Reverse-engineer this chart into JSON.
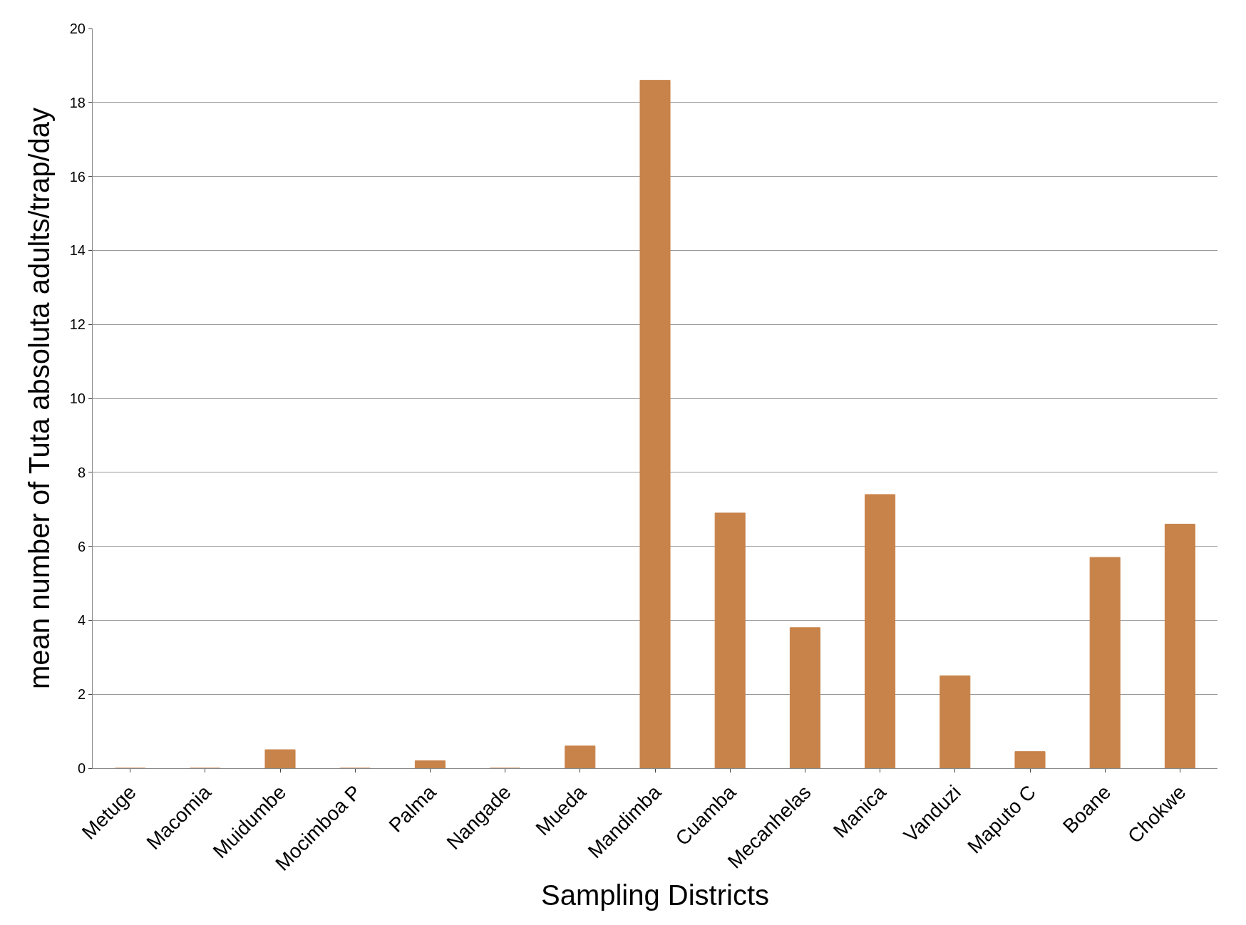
{
  "chart_data": {
    "type": "bar",
    "xlabel": "Sampling Districts",
    "ylabel": "mean number of Tuta absoluta adults/trap/day",
    "categories": [
      "Metuge",
      "Macomia",
      "Muidumbe",
      "Mocimboa P",
      "Palma",
      "Nangade",
      "Mueda",
      "Mandimba",
      "Cuamba",
      "Mecanhelas",
      "Manica",
      "Vanduzi",
      "Maputo C",
      "Boane",
      "Chokwe"
    ],
    "values": [
      0,
      0,
      0.5,
      0,
      0.2,
      0,
      0.6,
      18.6,
      6.9,
      3.8,
      7.4,
      2.5,
      0.45,
      5.7,
      6.6
    ],
    "color": "#c8834a",
    "ylim": [
      0,
      20
    ],
    "yticks": [
      0,
      2,
      4,
      6,
      8,
      10,
      12,
      14,
      16,
      18,
      20
    ],
    "grid": "y"
  }
}
